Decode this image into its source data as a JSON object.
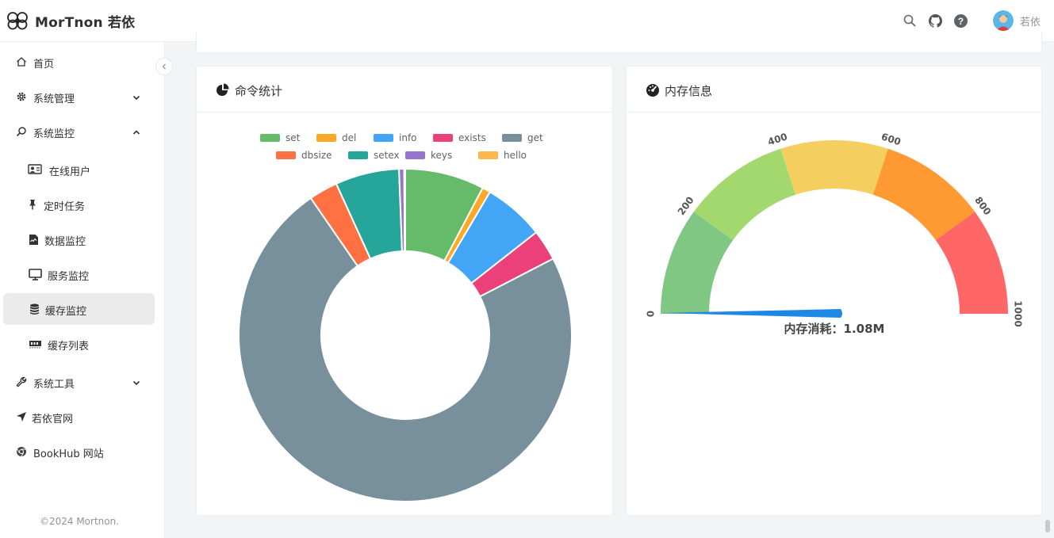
{
  "header": {
    "logo_text": "MorTnon 若依",
    "user_name": "若依",
    "icons": [
      "search-icon",
      "github-icon",
      "help-icon"
    ]
  },
  "sidebar": {
    "items": [
      {
        "label": "首页",
        "icon": "home-icon"
      },
      {
        "label": "系统管理",
        "icon": "gear-icon",
        "chevron": "down"
      },
      {
        "label": "系统监控",
        "icon": "monitor-search-icon",
        "chevron": "up"
      },
      {
        "label": "在线用户",
        "icon": "online-user-icon"
      },
      {
        "label": "定时任务",
        "icon": "pin-icon"
      },
      {
        "label": "数据监控",
        "icon": "data-file-icon"
      },
      {
        "label": "服务监控",
        "icon": "desktop-icon"
      },
      {
        "label": "缓存监控",
        "icon": "database-icon",
        "active": true
      },
      {
        "label": "缓存列表",
        "icon": "memory-icon"
      },
      {
        "label": "系统工具",
        "icon": "wrench-icon",
        "chevron": "down"
      },
      {
        "label": "若依官网",
        "icon": "navigation-icon"
      },
      {
        "label": "BookHub 网站",
        "icon": "chrome-icon"
      }
    ],
    "copyright": "©2024 Mortnon."
  },
  "cards": {
    "commands_title": "命令统计",
    "memory_title": "内存信息"
  },
  "colors": {
    "set": "#66bb6a",
    "del": "#ffa726",
    "info": "#42a5f5",
    "exists": "#ec407a",
    "get": "#78909c",
    "dbsize": "#ff7043",
    "setex": "#26a69a",
    "keys": "#9575cd",
    "hello": "#ffb74d"
  },
  "chart_data": [
    {
      "type": "pie",
      "variant": "donut",
      "legend": [
        "set",
        "del",
        "info",
        "exists",
        "get",
        "dbsize",
        "setex",
        "keys",
        "hello"
      ],
      "legend_position": "top",
      "slices": [
        {
          "name": "set",
          "value": 7.7
        },
        {
          "name": "del",
          "value": 0.8
        },
        {
          "name": "info",
          "value": 5.9
        },
        {
          "name": "exists",
          "value": 3.0
        },
        {
          "name": "get",
          "value": 73.0
        },
        {
          "name": "dbsize",
          "value": 2.8
        },
        {
          "name": "setex",
          "value": 6.2
        },
        {
          "name": "keys",
          "value": 0.5
        },
        {
          "name": "hello",
          "value": 0.1
        }
      ]
    },
    {
      "type": "gauge",
      "min": 0,
      "max": 1000,
      "tick_labels": [
        "0",
        "200",
        "400",
        "600",
        "800",
        "1000"
      ],
      "bands": [
        {
          "to": 200,
          "color": "#81c784"
        },
        {
          "to": 400,
          "color": "#a3d86f"
        },
        {
          "to": 600,
          "color": "#f4cf60"
        },
        {
          "to": 800,
          "color": "#ff9a33"
        },
        {
          "to": 1000,
          "color": "#ff6666"
        }
      ],
      "value": 1.08,
      "detail_label": "内存消耗：1.08M",
      "pointer_color": "#1e88e5"
    }
  ]
}
